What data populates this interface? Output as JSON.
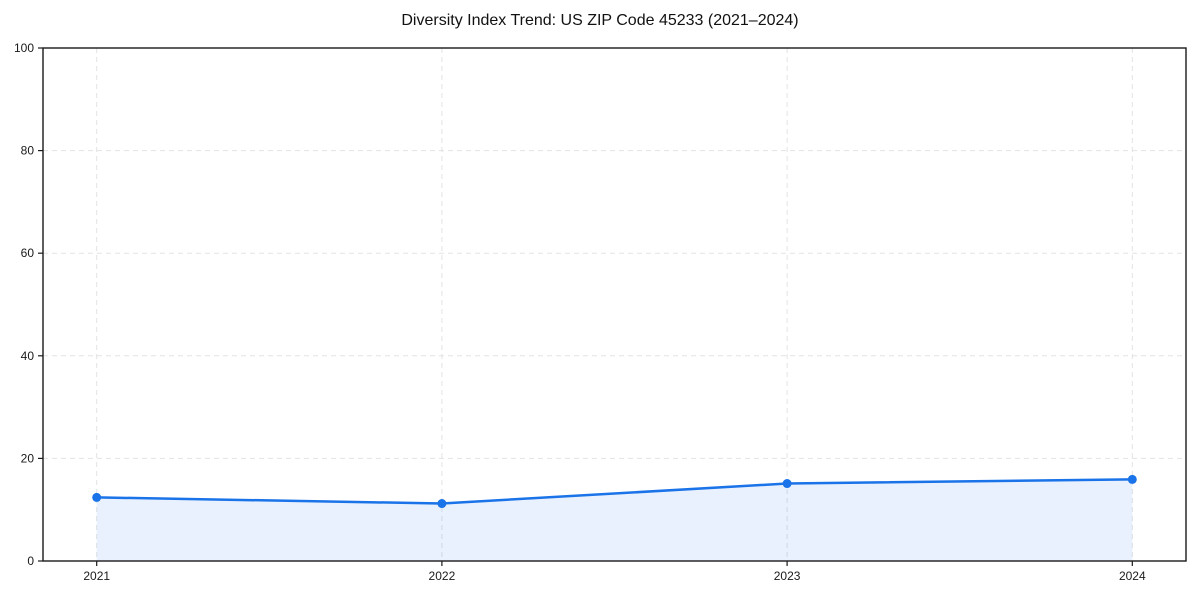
{
  "figure": {
    "title": "Diversity Index Trend: US ZIP Code 45233 (2021–2024)"
  },
  "chart_data": {
    "type": "area",
    "title": "Diversity Index Trend: US ZIP Code 45233 (2021–2024)",
    "x": [
      2021,
      2022,
      2023,
      2024
    ],
    "x_tick_labels": [
      "2021",
      "2022",
      "2023",
      "2024"
    ],
    "series": [
      {
        "name": "Diversity Index",
        "values": [
          12.4,
          11.2,
          15.1,
          15.9
        ]
      }
    ],
    "xlabel": "",
    "ylabel": "",
    "ylim": [
      0,
      100
    ],
    "yticks": [
      0,
      20,
      40,
      60,
      80,
      100
    ],
    "grid": {
      "visible": true,
      "style": "dashed",
      "axes": "both"
    },
    "legend": {
      "visible": false
    },
    "colors": {
      "line": "#1a73e8",
      "marker": "#1a73e8",
      "fill": "#1a73e8",
      "fill_opacity": 0.1,
      "gridline": "#e3e3e3",
      "axis_box": "#1a1a1a",
      "tick_text": "#1a1a1a"
    }
  }
}
